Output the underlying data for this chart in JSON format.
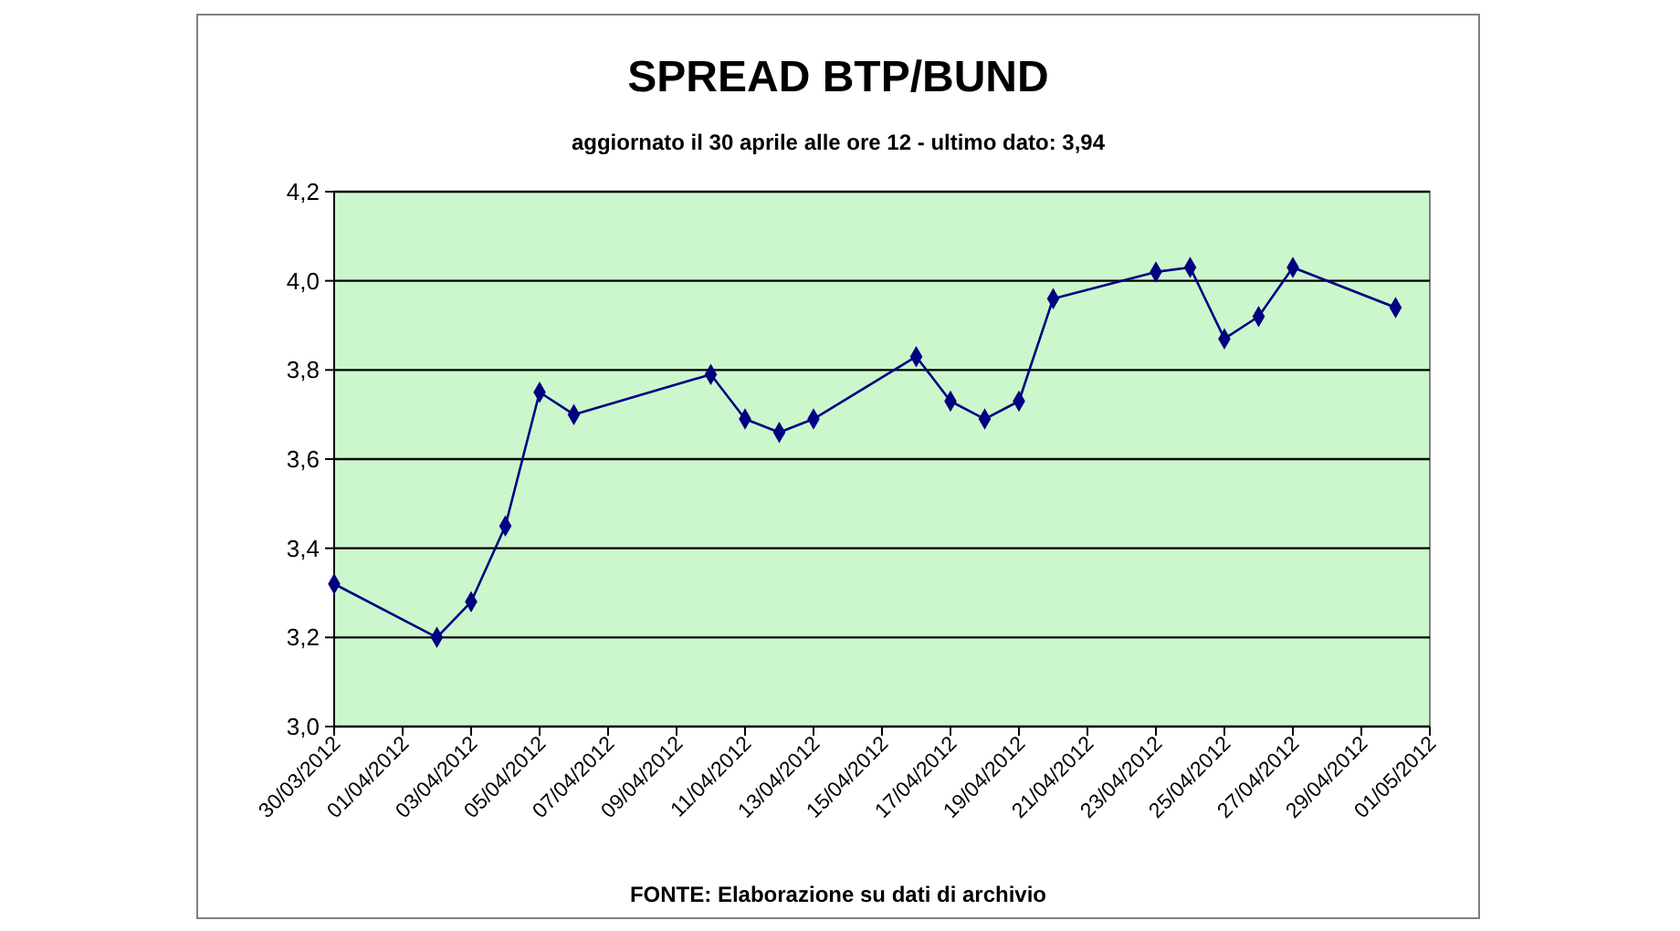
{
  "chart_data": {
    "type": "line",
    "title": "SPREAD BTP/BUND",
    "subtitle": "aggiornato il 30 aprile alle ore 12 - ultimo dato: 3,94",
    "annotations": [
      "FONTE: Elaborazione su dati di archivio"
    ],
    "x": [
      "2012-03-30",
      "2012-04-02",
      "2012-04-03",
      "2012-04-04",
      "2012-04-05",
      "2012-04-06",
      "2012-04-10",
      "2012-04-11",
      "2012-04-12",
      "2012-04-13",
      "2012-04-16",
      "2012-04-17",
      "2012-04-18",
      "2012-04-19",
      "2012-04-20",
      "2012-04-23",
      "2012-04-24",
      "2012-04-25",
      "2012-04-26",
      "2012-04-27",
      "2012-04-30"
    ],
    "series": [
      {
        "color": "#000080",
        "values": [
          3.32,
          3.2,
          3.28,
          3.45,
          3.75,
          3.7,
          3.79,
          3.69,
          3.66,
          3.69,
          3.83,
          3.73,
          3.69,
          3.73,
          3.96,
          4.02,
          4.03,
          3.87,
          3.92,
          4.03,
          3.94
        ]
      }
    ],
    "xlim": [
      "2012-03-30",
      "2012-05-01"
    ],
    "xticks": [
      {
        "value": "2012-03-30",
        "label": "30/03/2012"
      },
      {
        "value": "2012-04-01",
        "label": "01/04/2012"
      },
      {
        "value": "2012-04-03",
        "label": "03/04/2012"
      },
      {
        "value": "2012-04-05",
        "label": "05/04/2012"
      },
      {
        "value": "2012-04-07",
        "label": "07/04/2012"
      },
      {
        "value": "2012-04-09",
        "label": "09/04/2012"
      },
      {
        "value": "2012-04-11",
        "label": "11/04/2012"
      },
      {
        "value": "2012-04-13",
        "label": "13/04/2012"
      },
      {
        "value": "2012-04-15",
        "label": "15/04/2012"
      },
      {
        "value": "2012-04-17",
        "label": "17/04/2012"
      },
      {
        "value": "2012-04-19",
        "label": "19/04/2012"
      },
      {
        "value": "2012-04-21",
        "label": "21/04/2012"
      },
      {
        "value": "2012-04-23",
        "label": "23/04/2012"
      },
      {
        "value": "2012-04-25",
        "label": "25/04/2012"
      },
      {
        "value": "2012-04-27",
        "label": "27/04/2012"
      },
      {
        "value": "2012-04-29",
        "label": "29/04/2012"
      },
      {
        "value": "2012-05-01",
        "label": "01/05/2012"
      }
    ],
    "ylim": [
      3.0,
      4.2
    ],
    "yticks": [
      {
        "value": 3.0,
        "label": "3,0"
      },
      {
        "value": 3.2,
        "label": "3,2"
      },
      {
        "value": 3.4,
        "label": "3,4"
      },
      {
        "value": 3.6,
        "label": "3,6"
      },
      {
        "value": 3.8,
        "label": "3,8"
      },
      {
        "value": 4.0,
        "label": "4,0"
      },
      {
        "value": 4.2,
        "label": "4,2"
      }
    ],
    "grid": "y",
    "marker": "diamond",
    "line_style": "solid"
  }
}
